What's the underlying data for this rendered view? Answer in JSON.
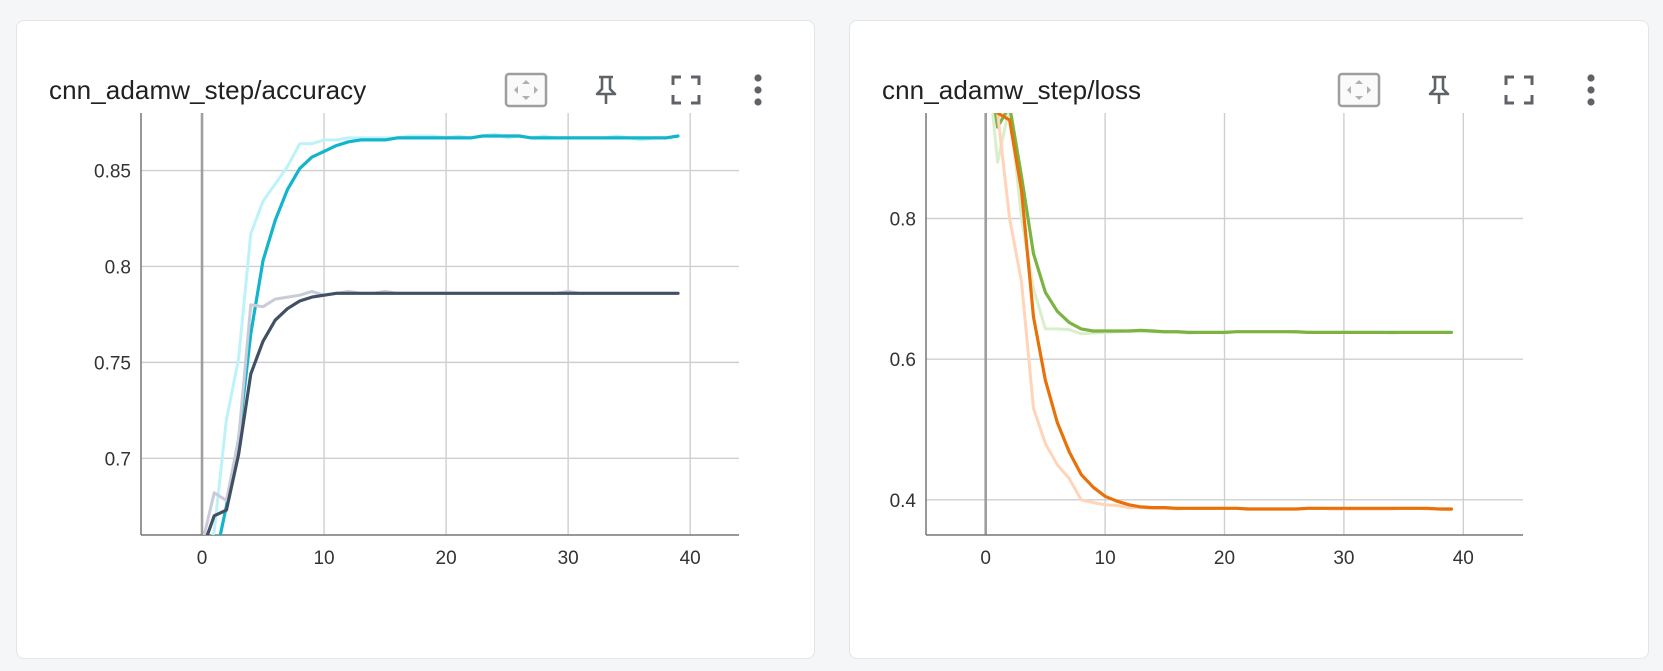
{
  "charts": [
    {
      "title": "cnn_adamw_step/accuracy",
      "toolbar": [
        "fit-domain-icon",
        "pin-icon",
        "fullscreen-icon",
        "more-vert-icon"
      ]
    },
    {
      "title": "cnn_adamw_step/loss",
      "toolbar": [
        "fit-domain-icon",
        "pin-icon",
        "fullscreen-icon",
        "more-vert-icon"
      ]
    }
  ],
  "chart_data": [
    {
      "type": "line",
      "title": "cnn_adamw_step/accuracy",
      "xlabel": "",
      "ylabel": "",
      "xlim": [
        -5,
        44
      ],
      "ylim": [
        0.66,
        0.88
      ],
      "xticks": [
        "0",
        "10",
        "20",
        "30",
        "40"
      ],
      "yticks": [
        "0.7",
        "0.75",
        "0.8",
        "0.85"
      ],
      "grid": true,
      "series": [
        {
          "color": "#bdf2f9",
          "smoothed": false,
          "x": [
            0,
            1,
            2,
            3,
            4,
            5,
            6,
            7,
            8,
            9,
            10,
            11,
            12,
            13,
            14,
            15,
            16,
            17,
            18,
            19,
            20,
            21,
            22,
            23,
            24,
            25,
            26,
            27,
            28,
            29,
            30,
            31,
            32,
            33,
            34,
            35,
            36,
            37,
            38,
            39
          ],
          "y": [
            0.642,
            0.662,
            0.72,
            0.752,
            0.817,
            0.834,
            0.843,
            0.852,
            0.864,
            0.864,
            0.866,
            0.866,
            0.867,
            0.867,
            0.867,
            0.867,
            0.867,
            0.868,
            0.868,
            0.868,
            0.867,
            0.868,
            0.867,
            0.868,
            0.869,
            0.867,
            0.868,
            0.867,
            0.868,
            0.867,
            0.867,
            0.867,
            0.867,
            0.867,
            0.868,
            0.867,
            0.866,
            0.867,
            0.867,
            0.868
          ]
        },
        {
          "color": "#12b5cb",
          "smoothed": true,
          "x": [
            0,
            1,
            2,
            3,
            4,
            5,
            6,
            7,
            8,
            9,
            10,
            11,
            12,
            13,
            14,
            15,
            16,
            17,
            18,
            19,
            20,
            21,
            22,
            23,
            24,
            25,
            26,
            27,
            28,
            29,
            30,
            31,
            32,
            33,
            34,
            35,
            36,
            37,
            38,
            39
          ],
          "y": [
            0.63,
            0.645,
            0.675,
            0.71,
            0.765,
            0.803,
            0.824,
            0.84,
            0.851,
            0.857,
            0.86,
            0.863,
            0.865,
            0.866,
            0.866,
            0.866,
            0.867,
            0.867,
            0.867,
            0.867,
            0.867,
            0.867,
            0.867,
            0.868,
            0.868,
            0.868,
            0.868,
            0.867,
            0.867,
            0.867,
            0.867,
            0.867,
            0.867,
            0.867,
            0.867,
            0.867,
            0.867,
            0.867,
            0.867,
            0.868
          ]
        },
        {
          "color": "#c9ccd8",
          "smoothed": false,
          "x": [
            0,
            1,
            2,
            3,
            4,
            5,
            6,
            7,
            8,
            9,
            10,
            11,
            12,
            13,
            14,
            15,
            16,
            17,
            18,
            19,
            20,
            21,
            22,
            23,
            24,
            25,
            26,
            27,
            28,
            29,
            30,
            31,
            32,
            33,
            34,
            35,
            36,
            37,
            38,
            39
          ],
          "y": [
            0.655,
            0.682,
            0.678,
            0.71,
            0.78,
            0.779,
            0.783,
            0.784,
            0.785,
            0.787,
            0.785,
            0.786,
            0.787,
            0.786,
            0.786,
            0.787,
            0.786,
            0.786,
            0.786,
            0.786,
            0.786,
            0.786,
            0.786,
            0.786,
            0.786,
            0.786,
            0.786,
            0.786,
            0.786,
            0.786,
            0.787,
            0.786,
            0.786,
            0.786,
            0.786,
            0.786,
            0.786,
            0.786,
            0.786,
            0.786
          ]
        },
        {
          "color": "#425066",
          "smoothed": true,
          "x": [
            0,
            1,
            2,
            3,
            4,
            5,
            6,
            7,
            8,
            9,
            10,
            11,
            12,
            13,
            14,
            15,
            16,
            17,
            18,
            19,
            20,
            21,
            22,
            23,
            24,
            25,
            26,
            27,
            28,
            29,
            30,
            31,
            32,
            33,
            34,
            35,
            36,
            37,
            38,
            39
          ],
          "y": [
            0.652,
            0.67,
            0.673,
            0.702,
            0.744,
            0.761,
            0.772,
            0.778,
            0.782,
            0.784,
            0.785,
            0.786,
            0.786,
            0.786,
            0.786,
            0.786,
            0.786,
            0.786,
            0.786,
            0.786,
            0.786,
            0.786,
            0.786,
            0.786,
            0.786,
            0.786,
            0.786,
            0.786,
            0.786,
            0.786,
            0.786,
            0.786,
            0.786,
            0.786,
            0.786,
            0.786,
            0.786,
            0.786,
            0.786,
            0.786
          ]
        }
      ]
    },
    {
      "type": "line",
      "title": "cnn_adamw_step/loss",
      "xlabel": "",
      "ylabel": "",
      "xlim": [
        -5,
        45
      ],
      "ylim": [
        0.35,
        0.95
      ],
      "xticks": [
        "0",
        "10",
        "20",
        "30",
        "40"
      ],
      "yticks": [
        "0.4",
        "0.6",
        "0.8"
      ],
      "grid": true,
      "series": [
        {
          "color": "#d9efcc",
          "smoothed": false,
          "x": [
            0,
            1,
            2,
            3,
            4,
            5,
            6,
            7,
            8,
            9,
            10,
            11,
            12,
            13,
            14,
            15,
            16,
            17,
            18,
            19,
            20,
            21,
            22,
            23,
            24,
            25,
            26,
            27,
            28,
            29,
            30,
            31,
            32,
            33,
            34,
            35,
            36,
            37,
            38,
            39
          ],
          "y": [
            1.05,
            0.88,
            0.96,
            0.8,
            0.7,
            0.643,
            0.643,
            0.642,
            0.636,
            0.637,
            0.638,
            0.639,
            0.64,
            0.639,
            0.639,
            0.638,
            0.638,
            0.637,
            0.638,
            0.638,
            0.637,
            0.639,
            0.639,
            0.639,
            0.639,
            0.639,
            0.638,
            0.638,
            0.638,
            0.638,
            0.638,
            0.638,
            0.638,
            0.638,
            0.637,
            0.638,
            0.638,
            0.638,
            0.638,
            0.638
          ]
        },
        {
          "color": "#7cb342",
          "smoothed": true,
          "x": [
            0,
            1,
            2,
            3,
            4,
            5,
            6,
            7,
            8,
            9,
            10,
            11,
            12,
            13,
            14,
            15,
            16,
            17,
            18,
            19,
            20,
            21,
            22,
            23,
            24,
            25,
            26,
            27,
            28,
            29,
            30,
            31,
            32,
            33,
            34,
            35,
            36,
            37,
            38,
            39
          ],
          "y": [
            1.05,
            0.93,
            0.96,
            0.86,
            0.75,
            0.695,
            0.668,
            0.652,
            0.643,
            0.64,
            0.64,
            0.64,
            0.64,
            0.641,
            0.64,
            0.639,
            0.639,
            0.638,
            0.638,
            0.638,
            0.638,
            0.639,
            0.639,
            0.639,
            0.639,
            0.639,
            0.639,
            0.638,
            0.638,
            0.638,
            0.638,
            0.638,
            0.638,
            0.638,
            0.638,
            0.638,
            0.638,
            0.638,
            0.638,
            0.638
          ]
        },
        {
          "color": "#ffd4b8",
          "smoothed": false,
          "x": [
            0,
            1,
            2,
            3,
            4,
            5,
            6,
            7,
            8,
            9,
            10,
            11,
            12,
            13,
            14,
            15,
            16,
            17,
            18,
            19,
            20,
            21,
            22,
            23,
            24,
            25,
            26,
            27,
            28,
            29,
            30,
            31,
            32,
            33,
            34,
            35,
            36,
            37,
            38,
            39
          ],
          "y": [
            1.02,
            0.95,
            0.8,
            0.71,
            0.53,
            0.48,
            0.45,
            0.43,
            0.4,
            0.396,
            0.393,
            0.392,
            0.389,
            0.389,
            0.388,
            0.388,
            0.387,
            0.388,
            0.388,
            0.388,
            0.388,
            0.388,
            0.387,
            0.387,
            0.387,
            0.387,
            0.387,
            0.388,
            0.388,
            0.387,
            0.387,
            0.387,
            0.387,
            0.387,
            0.387,
            0.388,
            0.388,
            0.387,
            0.387,
            0.386
          ]
        },
        {
          "color": "#e8710a",
          "smoothed": true,
          "x": [
            0,
            1,
            2,
            3,
            4,
            5,
            6,
            7,
            8,
            9,
            10,
            11,
            12,
            13,
            14,
            15,
            16,
            17,
            18,
            19,
            20,
            21,
            22,
            23,
            24,
            25,
            26,
            27,
            28,
            29,
            30,
            31,
            32,
            33,
            34,
            35,
            36,
            37,
            38,
            39
          ],
          "y": [
            1.0,
            0.95,
            0.94,
            0.84,
            0.66,
            0.57,
            0.51,
            0.468,
            0.436,
            0.418,
            0.405,
            0.398,
            0.393,
            0.39,
            0.389,
            0.389,
            0.388,
            0.388,
            0.388,
            0.388,
            0.388,
            0.388,
            0.387,
            0.387,
            0.387,
            0.387,
            0.387,
            0.388,
            0.388,
            0.388,
            0.388,
            0.388,
            0.388,
            0.388,
            0.388,
            0.388,
            0.388,
            0.388,
            0.387,
            0.387
          ]
        }
      ]
    }
  ]
}
